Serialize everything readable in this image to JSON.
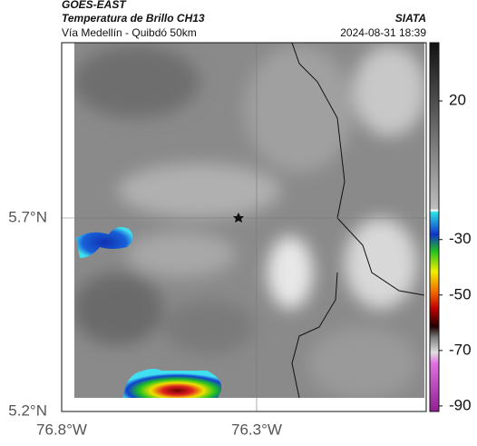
{
  "header": {
    "satellite": "GOES-EAST",
    "product": "Temperatura de Brillo CH13",
    "region": "Vía Medellín - Quibdó 50km",
    "source": "SIATA",
    "datetime": "2024-08-31 18:39"
  },
  "map": {
    "xlim": [
      -76.8,
      -75.865
    ],
    "ylim": [
      5.2,
      6.153
    ],
    "xticks": [
      {
        "value": -76.8,
        "label": "76.8°W"
      },
      {
        "value": -76.3,
        "label": "76.3°W"
      }
    ],
    "yticks": [
      {
        "value": 5.7,
        "label": "5.7°N"
      },
      {
        "value": 5.2,
        "label": "5.2°N"
      }
    ],
    "grid": true
  },
  "colorbar": {
    "lim": [
      -92,
      41
    ],
    "ticks": [
      20,
      -30,
      -50,
      -70,
      -90
    ]
  }
}
